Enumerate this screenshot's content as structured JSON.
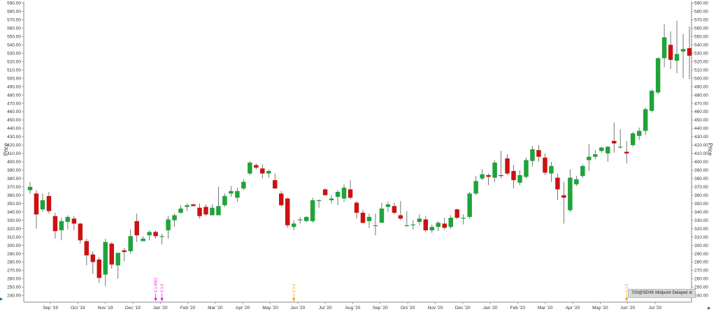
{
  "chart_data": {
    "type": "candlestick",
    "ylabel_left": "Price",
    "ylabel_right": "Price",
    "ylim": [
      232,
      592
    ],
    "ytick_step": 10,
    "ytick_format": "2dp",
    "grid": false,
    "x_axis_labels": [
      "Sep '19",
      "Oct '19",
      "Nov '19",
      "Dec '19",
      "Jan '20",
      "Feb '20",
      "Mar '20",
      "Apr '20",
      "May '20",
      "Jun '20",
      "Jul '20",
      "Aug '20",
      "Sep '20",
      "Oct '20",
      "Nov '20",
      "Dec '20",
      "Jan '20",
      "Feb '20",
      "Mar '20",
      "Apr '20",
      "May '20",
      "Jun '20",
      "Jul '20"
    ],
    "colors": {
      "up": "#1fa33a",
      "down": "#cc1111",
      "wick": "#555555",
      "annotation_magenta": "#dd22dd",
      "annotation_orange": "#f0a020",
      "axis": "#888888"
    },
    "candles": [
      {
        "o": 366,
        "h": 376,
        "l": 362,
        "c": 370
      },
      {
        "o": 362,
        "h": 366,
        "l": 320,
        "c": 337
      },
      {
        "o": 343,
        "h": 362,
        "l": 340,
        "c": 354
      },
      {
        "o": 359,
        "h": 364,
        "l": 338,
        "c": 341
      },
      {
        "o": 335,
        "h": 339,
        "l": 308,
        "c": 317
      },
      {
        "o": 318,
        "h": 333,
        "l": 306,
        "c": 329
      },
      {
        "o": 328,
        "h": 336,
        "l": 319,
        "c": 334
      },
      {
        "o": 332,
        "h": 335,
        "l": 318,
        "c": 326
      },
      {
        "o": 326,
        "h": 327,
        "l": 302,
        "c": 306
      },
      {
        "o": 305,
        "h": 308,
        "l": 276,
        "c": 288
      },
      {
        "o": 289,
        "h": 293,
        "l": 266,
        "c": 280
      },
      {
        "o": 283,
        "h": 286,
        "l": 255,
        "c": 261
      },
      {
        "o": 265,
        "h": 308,
        "l": 251,
        "c": 304
      },
      {
        "o": 302,
        "h": 304,
        "l": 272,
        "c": 277
      },
      {
        "o": 276,
        "h": 291,
        "l": 260,
        "c": 291
      },
      {
        "o": 294,
        "h": 297,
        "l": 281,
        "c": 292
      },
      {
        "o": 293,
        "h": 319,
        "l": 290,
        "c": 311
      },
      {
        "o": 329,
        "h": 338,
        "l": 304,
        "c": 312
      },
      {
        "o": 305,
        "h": 311,
        "l": 305,
        "c": 308
      },
      {
        "o": 312,
        "h": 318,
        "l": 306,
        "c": 316
      },
      {
        "o": 316,
        "h": 318,
        "l": 308,
        "c": 311
      },
      {
        "o": 310,
        "h": 314,
        "l": 301,
        "c": 311
      },
      {
        "o": 318,
        "h": 335,
        "l": 308,
        "c": 331
      },
      {
        "o": 330,
        "h": 338,
        "l": 322,
        "c": 336
      },
      {
        "o": 339,
        "h": 348,
        "l": 338,
        "c": 344
      },
      {
        "o": 346,
        "h": 350,
        "l": 341,
        "c": 348
      },
      {
        "o": 349,
        "h": 350,
        "l": 347,
        "c": 347
      },
      {
        "o": 345,
        "h": 350,
        "l": 332,
        "c": 335
      },
      {
        "o": 346,
        "h": 349,
        "l": 335,
        "c": 337
      },
      {
        "o": 336,
        "h": 349,
        "l": 336,
        "c": 345
      },
      {
        "o": 336,
        "h": 370,
        "l": 336,
        "c": 347
      },
      {
        "o": 348,
        "h": 362,
        "l": 346,
        "c": 359
      },
      {
        "o": 362,
        "h": 371,
        "l": 358,
        "c": 365
      },
      {
        "o": 357,
        "h": 369,
        "l": 352,
        "c": 365
      },
      {
        "o": 368,
        "h": 379,
        "l": 366,
        "c": 376
      },
      {
        "o": 386,
        "h": 401,
        "l": 384,
        "c": 399
      },
      {
        "o": 396,
        "h": 398,
        "l": 391,
        "c": 393
      },
      {
        "o": 392,
        "h": 397,
        "l": 380,
        "c": 386
      },
      {
        "o": 386,
        "h": 391,
        "l": 381,
        "c": 389
      },
      {
        "o": 378,
        "h": 386,
        "l": 370,
        "c": 368
      },
      {
        "o": 362,
        "h": 365,
        "l": 346,
        "c": 348
      },
      {
        "o": 356,
        "h": 357,
        "l": 321,
        "c": 324
      },
      {
        "o": 322,
        "h": 330,
        "l": 318,
        "c": 326
      },
      {
        "o": 330,
        "h": 334,
        "l": 326,
        "c": 331
      },
      {
        "o": 329,
        "h": 335,
        "l": 328,
        "c": 334
      },
      {
        "o": 329,
        "h": 357,
        "l": 327,
        "c": 354
      },
      {
        "o": 353,
        "h": 355,
        "l": 345,
        "c": 354
      },
      {
        "o": 367,
        "h": 368,
        "l": 360,
        "c": 360
      },
      {
        "o": 354,
        "h": 360,
        "l": 350,
        "c": 356
      },
      {
        "o": 358,
        "h": 366,
        "l": 348,
        "c": 364
      },
      {
        "o": 356,
        "h": 373,
        "l": 352,
        "c": 369
      },
      {
        "o": 367,
        "h": 378,
        "l": 355,
        "c": 357
      },
      {
        "o": 351,
        "h": 353,
        "l": 332,
        "c": 339
      },
      {
        "o": 339,
        "h": 342,
        "l": 326,
        "c": 327
      },
      {
        "o": 329,
        "h": 338,
        "l": 321,
        "c": 334
      },
      {
        "o": 324,
        "h": 338,
        "l": 312,
        "c": 324
      },
      {
        "o": 327,
        "h": 351,
        "l": 327,
        "c": 344
      },
      {
        "o": 346,
        "h": 352,
        "l": 340,
        "c": 349
      },
      {
        "o": 347,
        "h": 351,
        "l": 337,
        "c": 339
      },
      {
        "o": 336,
        "h": 353,
        "l": 330,
        "c": 332
      },
      {
        "o": 324,
        "h": 341,
        "l": 322,
        "c": 324
      },
      {
        "o": 324,
        "h": 330,
        "l": 319,
        "c": 325
      },
      {
        "o": 328,
        "h": 337,
        "l": 324,
        "c": 332
      },
      {
        "o": 331,
        "h": 335,
        "l": 316,
        "c": 318
      },
      {
        "o": 318,
        "h": 325,
        "l": 315,
        "c": 322
      },
      {
        "o": 322,
        "h": 329,
        "l": 317,
        "c": 327
      },
      {
        "o": 326,
        "h": 333,
        "l": 319,
        "c": 321
      },
      {
        "o": 322,
        "h": 336,
        "l": 320,
        "c": 333
      },
      {
        "o": 343,
        "h": 344,
        "l": 331,
        "c": 333
      },
      {
        "o": 332,
        "h": 337,
        "l": 325,
        "c": 333
      },
      {
        "o": 334,
        "h": 364,
        "l": 332,
        "c": 362
      },
      {
        "o": 362,
        "h": 383,
        "l": 360,
        "c": 377
      },
      {
        "o": 380,
        "h": 391,
        "l": 378,
        "c": 385
      },
      {
        "o": 384,
        "h": 386,
        "l": 372,
        "c": 382
      },
      {
        "o": 381,
        "h": 402,
        "l": 376,
        "c": 399
      },
      {
        "o": 384,
        "h": 413,
        "l": 380,
        "c": 383
      },
      {
        "o": 404,
        "h": 409,
        "l": 384,
        "c": 386
      },
      {
        "o": 389,
        "h": 396,
        "l": 368,
        "c": 378
      },
      {
        "o": 375,
        "h": 390,
        "l": 372,
        "c": 384
      },
      {
        "o": 382,
        "h": 405,
        "l": 380,
        "c": 402
      },
      {
        "o": 401,
        "h": 419,
        "l": 394,
        "c": 415
      },
      {
        "o": 414,
        "h": 420,
        "l": 400,
        "c": 406
      },
      {
        "o": 405,
        "h": 410,
        "l": 384,
        "c": 387
      },
      {
        "o": 386,
        "h": 400,
        "l": 376,
        "c": 395
      },
      {
        "o": 381,
        "h": 386,
        "l": 354,
        "c": 367
      },
      {
        "o": 360,
        "h": 376,
        "l": 326,
        "c": 357
      },
      {
        "o": 342,
        "h": 391,
        "l": 340,
        "c": 381
      },
      {
        "o": 373,
        "h": 383,
        "l": 371,
        "c": 379
      },
      {
        "o": 383,
        "h": 397,
        "l": 381,
        "c": 395
      },
      {
        "o": 402,
        "h": 421,
        "l": 389,
        "c": 406
      },
      {
        "o": 406,
        "h": 414,
        "l": 403,
        "c": 409
      },
      {
        "o": 413,
        "h": 418,
        "l": 411,
        "c": 417
      },
      {
        "o": 410,
        "h": 419,
        "l": 400,
        "c": 418
      },
      {
        "o": 425,
        "h": 447,
        "l": 411,
        "c": 422
      },
      {
        "o": 417,
        "h": 439,
        "l": 416,
        "c": 418
      },
      {
        "o": 412,
        "h": 425,
        "l": 398,
        "c": 410
      },
      {
        "o": 420,
        "h": 436,
        "l": 418,
        "c": 434
      },
      {
        "o": 431,
        "h": 441,
        "l": 426,
        "c": 437
      },
      {
        "o": 437,
        "h": 465,
        "l": 432,
        "c": 463
      },
      {
        "o": 461,
        "h": 487,
        "l": 459,
        "c": 485
      },
      {
        "o": 483,
        "h": 525,
        "l": 481,
        "c": 524
      },
      {
        "o": 524,
        "h": 565,
        "l": 513,
        "c": 549
      },
      {
        "o": 540,
        "h": 556,
        "l": 511,
        "c": 522
      },
      {
        "o": 521,
        "h": 569,
        "l": 506,
        "c": 529
      },
      {
        "o": 532,
        "h": 553,
        "l": 500,
        "c": 535
      },
      {
        "o": 536,
        "h": 562,
        "l": 499,
        "c": 527
      }
    ],
    "annotations": [
      {
        "label": "0 1.0001",
        "candle_index": 20,
        "color": "magenta"
      },
      {
        "label": "0 1.0",
        "candle_index": 21,
        "color": "magenta"
      },
      {
        "label": "0 1.0",
        "candle_index": 42,
        "color": "orange"
      },
      {
        "label": "0 1.0",
        "candle_index": 95,
        "color": "orange"
      }
    ]
  },
  "status_badge": "700@SEHK Midpoint Delayed ⊘"
}
